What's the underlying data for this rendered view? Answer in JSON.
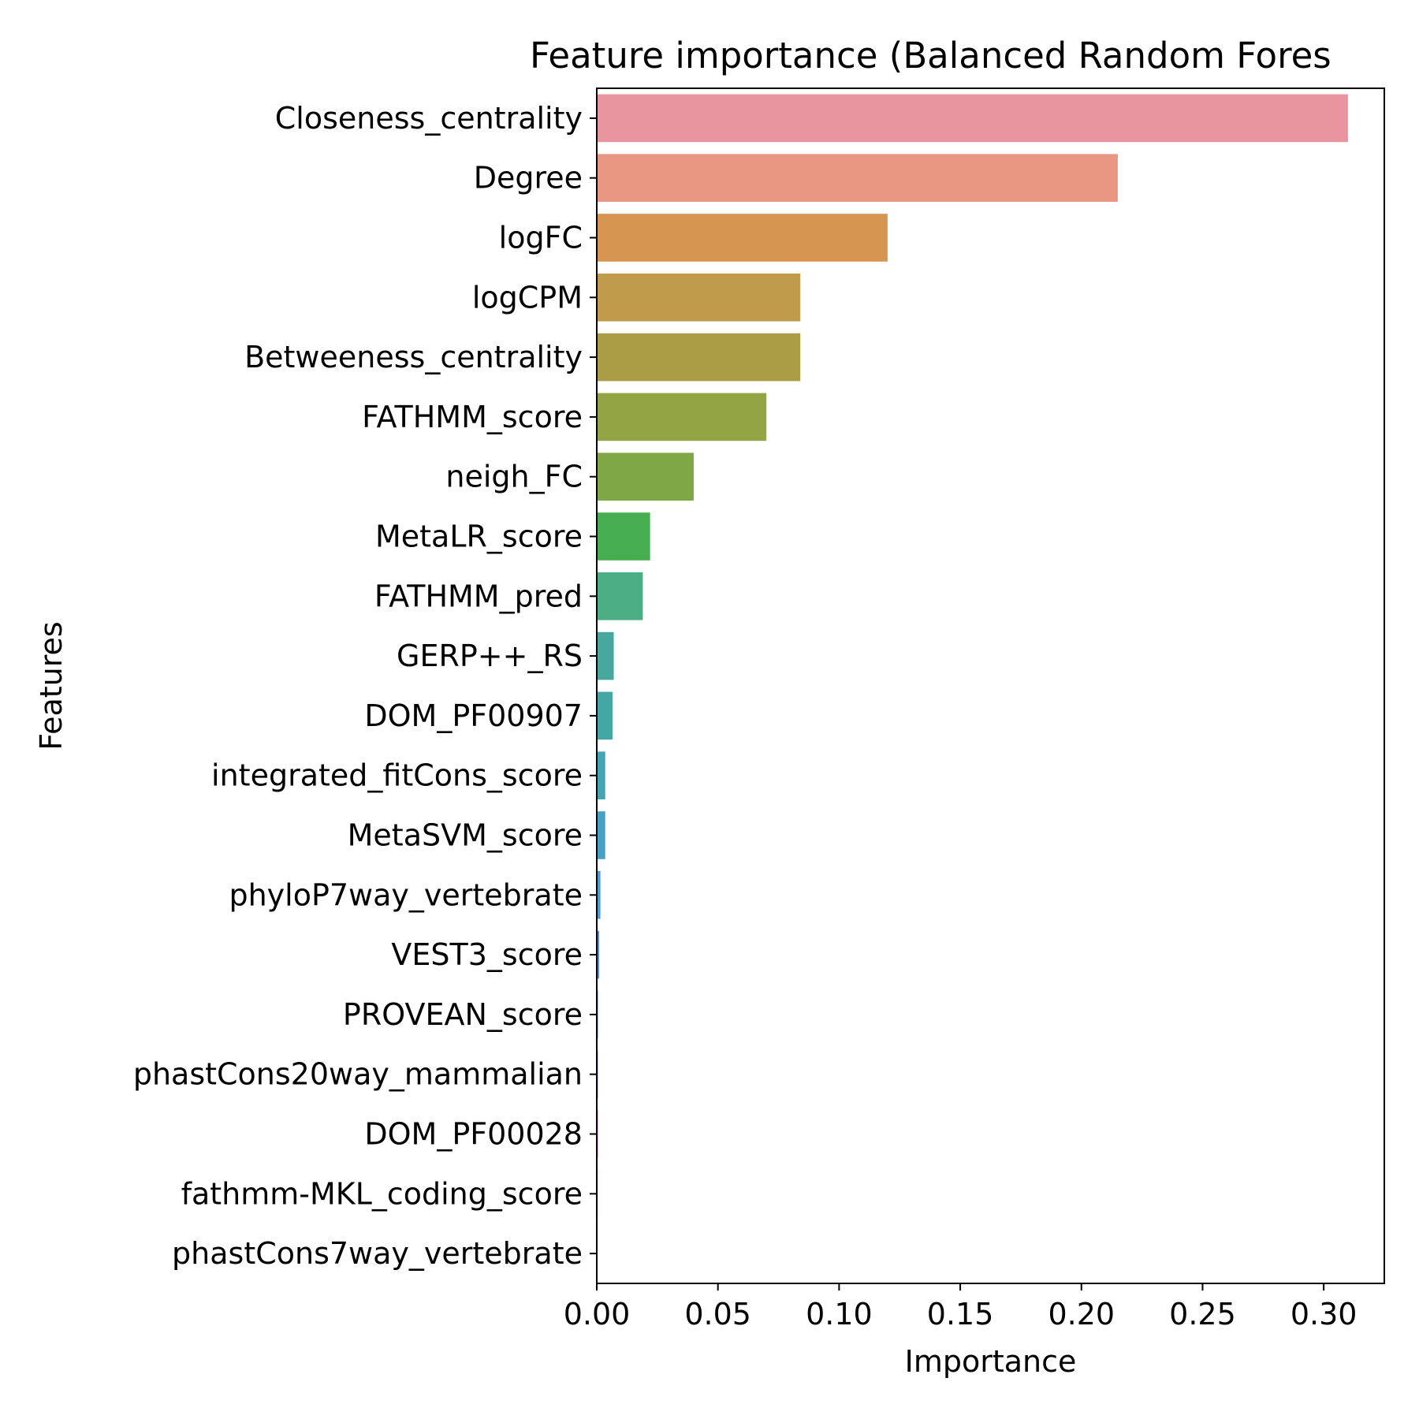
{
  "chart_data": {
    "type": "bar",
    "orientation": "horizontal",
    "title": "Feature importance (Balanced Random Fores",
    "xlabel": "Importance",
    "ylabel": "Features",
    "xlim": [
      0,
      0.325
    ],
    "xticks": [
      "0.00",
      "0.05",
      "0.10",
      "0.15",
      "0.20",
      "0.25",
      "0.30"
    ],
    "grid": false,
    "legend": "none",
    "categories": [
      "Closeness_centrality",
      "Degree",
      "logFC",
      "logCPM",
      "Betweeness_centrality",
      "FATHMM_score",
      "neigh_FC",
      "MetaLR_score",
      "FATHMM_pred",
      "GERP++_RS",
      "DOM_PF00907",
      "integrated_fitCons_score",
      "MetaSVM_score",
      "phyloP7way_vertebrate",
      "VEST3_score",
      "PROVEAN_score",
      "phastCons20way_mammalian",
      "DOM_PF00028",
      "fathmm-MKL_coding_score",
      "phastCons7way_vertebrate"
    ],
    "values": [
      0.31,
      0.215,
      0.12,
      0.084,
      0.084,
      0.07,
      0.04,
      0.022,
      0.019,
      0.007,
      0.0065,
      0.0035,
      0.0035,
      0.0015,
      0.001,
      0.0005,
      0.0005,
      0.0005,
      0.0004,
      0.0003
    ],
    "colors": [
      "#e995a0",
      "#e89783",
      "#d69550",
      "#c19b4c",
      "#aa9d45",
      "#93a445",
      "#7ea846",
      "#46ae50",
      "#4cae84",
      "#48a89d",
      "#45a6a6",
      "#44a5b3",
      "#45a2c6",
      "#4c9ccf",
      "#4f8fcf",
      "#6b8ad2",
      "#9b87d1",
      "#cb7ccf",
      "#e07ab6",
      "#e77f9c"
    ]
  }
}
